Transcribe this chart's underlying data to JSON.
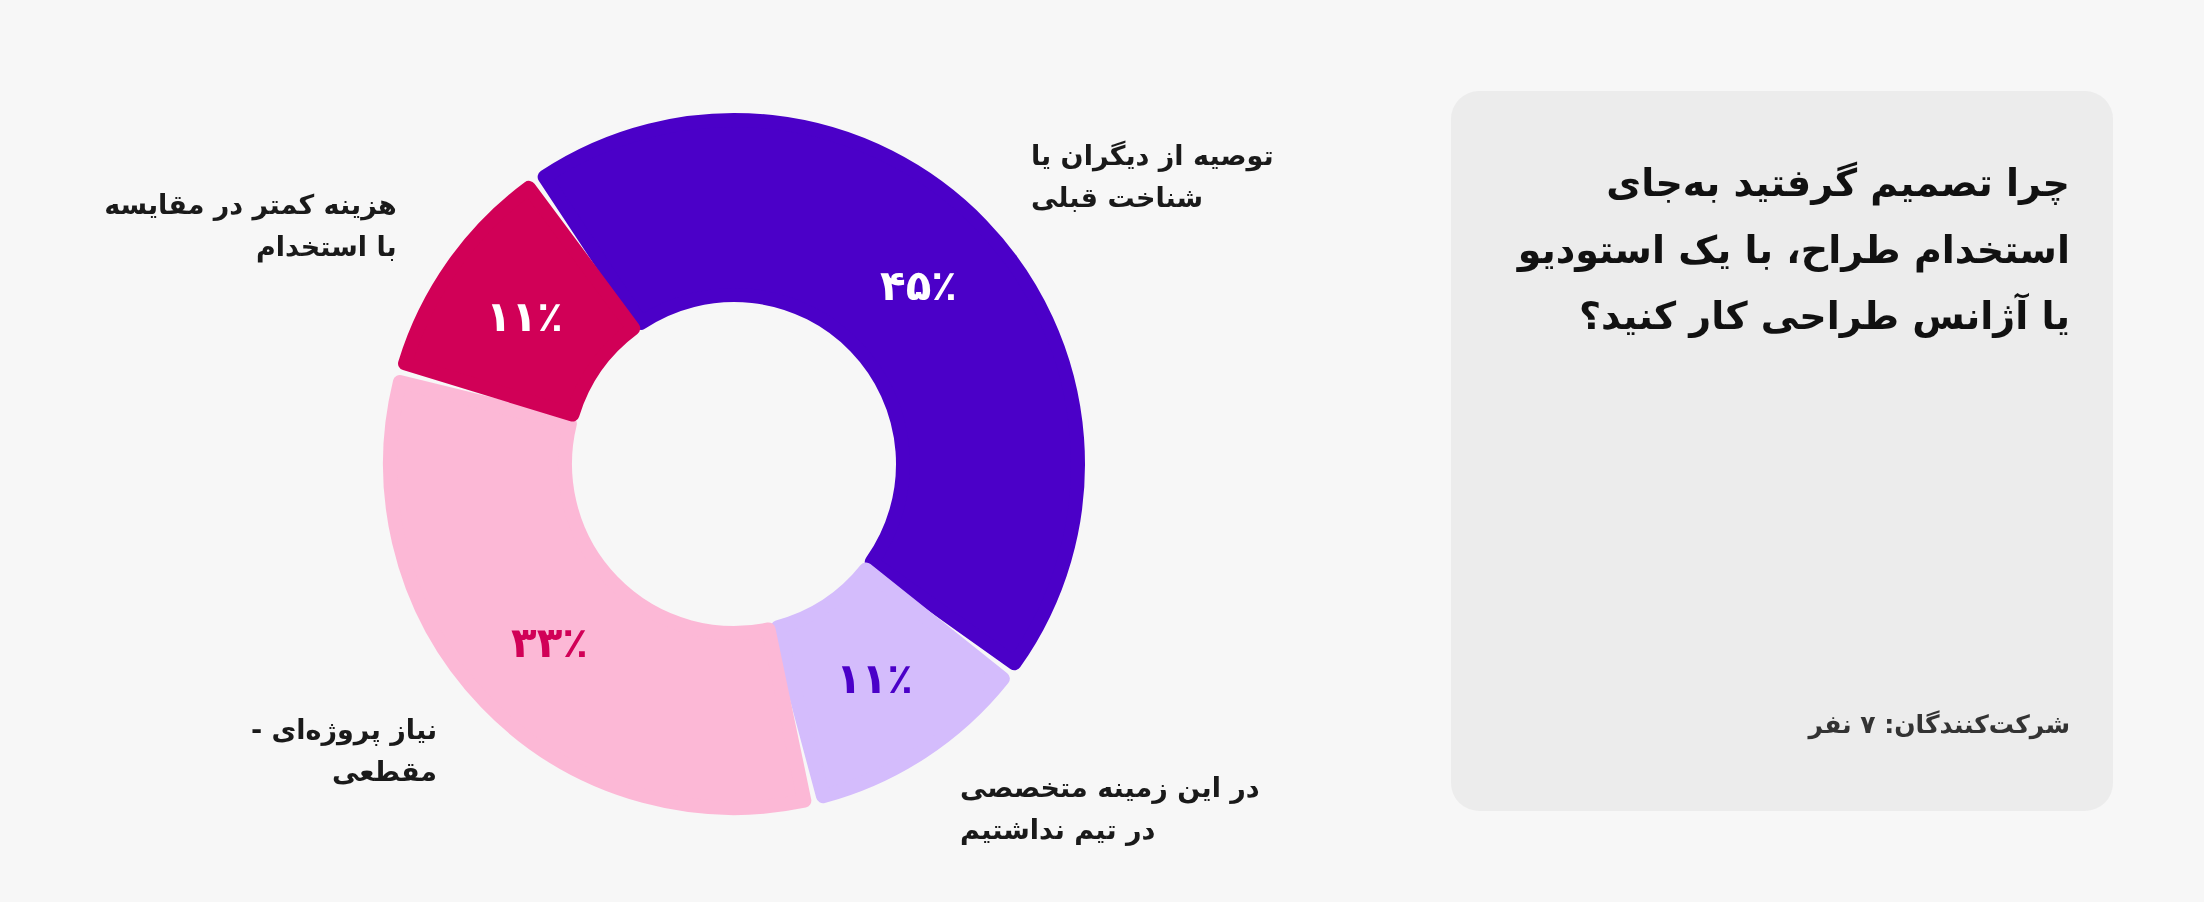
{
  "chart_data": {
    "type": "donut",
    "title": "چرا تصمیم گرفتید به‌جای استخدام طراح، با یک استودیو یا آژانس طراحی کار کنید؟",
    "categories": [
      "توصیه از دیگران یا شناخت قبلی",
      "در این زمینه متخصصی در تیم نداشتیم",
      "نیاز پروژه‌ای - مقطعی",
      "هزینه کمتر در مقایسه با استخدام"
    ],
    "values": [
      45,
      11,
      33,
      11
    ],
    "value_labels": [
      "۴۵٪",
      "۱۱٪",
      "۳۳٪",
      "۱۱٪"
    ],
    "colors": [
      "#4b00c8",
      "#d4bcfc",
      "#fcb8d6",
      "#d10057"
    ],
    "annotations": [
      "شرکت‌کنندگان: ۷ نفر"
    ]
  }
}
